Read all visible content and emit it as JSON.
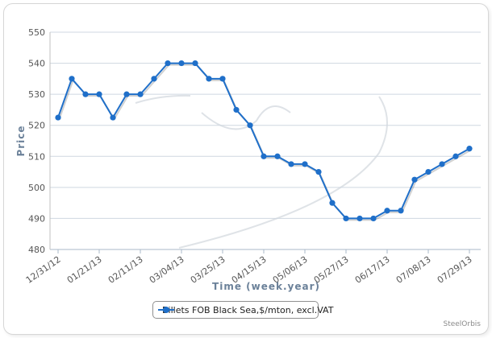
{
  "chart_data": {
    "type": "line",
    "xlabel": "Time (week.year)",
    "ylabel": "Price",
    "ylim": [
      480,
      550
    ],
    "yticks": [
      480,
      490,
      500,
      510,
      520,
      530,
      540,
      550
    ],
    "x_tick_labels": [
      "12/31/12",
      "01/21/13",
      "02/11/13",
      "03/04/13",
      "03/25/13",
      "04/15/13",
      "05/06/13",
      "05/27/13",
      "06/17/13",
      "07/08/13",
      "07/29/13"
    ],
    "x": [
      "12/31/12",
      "01/07/13",
      "01/14/13",
      "01/21/13",
      "01/28/13",
      "02/04/13",
      "02/11/13",
      "02/18/13",
      "02/25/13",
      "03/04/13",
      "03/11/13",
      "03/18/13",
      "03/25/13",
      "04/01/13",
      "04/08/13",
      "04/15/13",
      "04/22/13",
      "04/29/13",
      "05/06/13",
      "05/13/13",
      "05/20/13",
      "05/27/13",
      "06/03/13",
      "06/10/13",
      "06/17/13",
      "06/24/13",
      "07/01/13",
      "07/08/13",
      "07/15/13",
      "07/22/13",
      "07/29/13"
    ],
    "series": [
      {
        "name": "Billets FOB Black Sea,$/mton, excl.VAT",
        "color": "#1f6fc9",
        "values": [
          522.5,
          535,
          530,
          530,
          522.5,
          530,
          530,
          535,
          540,
          540,
          540,
          535,
          535,
          525,
          520,
          510,
          510,
          507.5,
          507.5,
          505,
          495,
          490,
          490,
          490,
          492.5,
          492.5,
          502.5,
          505,
          507.5,
          510,
          512.5
        ]
      }
    ],
    "grid": "horizontal",
    "legend": "bottom-center"
  },
  "credit": "SteelOrbis"
}
